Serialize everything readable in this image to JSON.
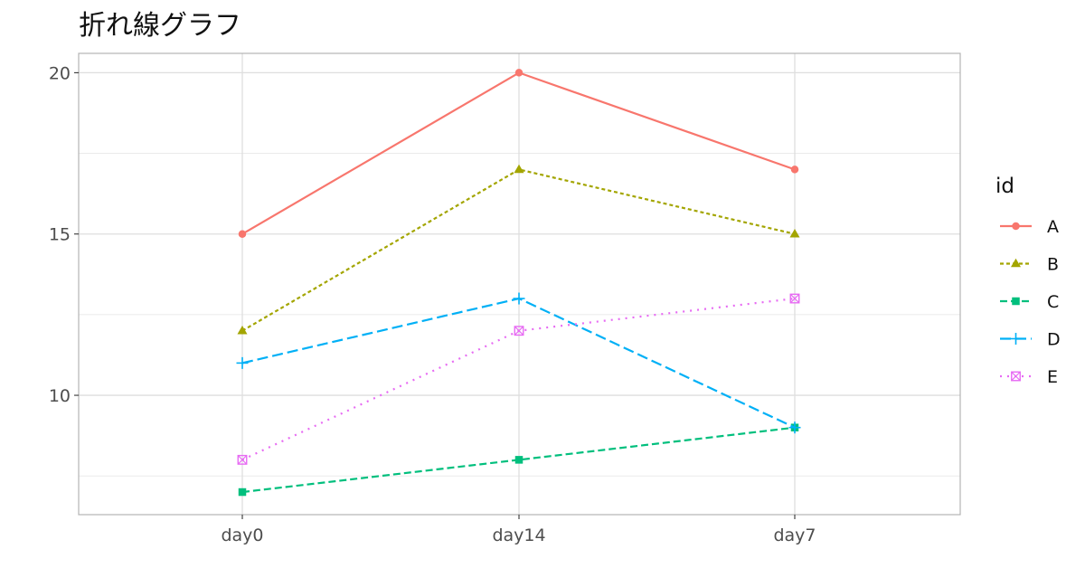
{
  "chart_data": {
    "type": "line",
    "title": "折れ線グラフ",
    "xlabel": "",
    "ylabel": "",
    "categories": [
      "day0",
      "day14",
      "day7"
    ],
    "ylim": [
      6.3,
      20.6
    ],
    "y_ticks": [
      10,
      15,
      20
    ],
    "y_tick_labels": [
      "10",
      "15",
      "20"
    ],
    "y_minor_ticks": [
      7.5,
      12.5,
      17.5
    ],
    "grid": true,
    "legend": {
      "title": "id",
      "position": "right"
    },
    "series": [
      {
        "name": "A",
        "values": [
          15,
          20,
          17
        ],
        "color": "#F8766D",
        "linestyle": "solid",
        "marker": "circle"
      },
      {
        "name": "B",
        "values": [
          12,
          17,
          15
        ],
        "color": "#A3A500",
        "linestyle": "dotted-short",
        "marker": "triangle"
      },
      {
        "name": "C",
        "values": [
          7,
          8,
          9
        ],
        "color": "#00BF7D",
        "linestyle": "dashed",
        "marker": "square"
      },
      {
        "name": "D",
        "values": [
          11,
          13,
          9
        ],
        "color": "#00B0F6",
        "linestyle": "longdash",
        "marker": "plus"
      },
      {
        "name": "E",
        "values": [
          8,
          12,
          13
        ],
        "color": "#E76BF3",
        "linestyle": "dotted",
        "marker": "square-x"
      }
    ]
  }
}
